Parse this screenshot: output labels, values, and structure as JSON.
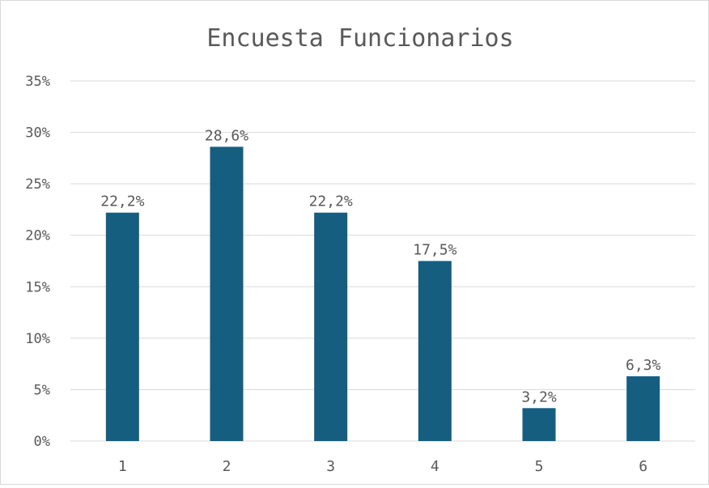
{
  "chart_data": {
    "type": "bar",
    "title": "Encuesta Funcionarios",
    "categories": [
      "1",
      "2",
      "3",
      "4",
      "5",
      "6"
    ],
    "series": [
      {
        "values": [
          22.2,
          28.6,
          22.2,
          17.5,
          3.2,
          6.3
        ],
        "data_labels": [
          "22,2%",
          "28,6%",
          "22,2%",
          "17,5%",
          "3,2%",
          "6,3%"
        ]
      }
    ],
    "y_ticks": [
      "0%",
      "5%",
      "10%",
      "15%",
      "20%",
      "25%",
      "30%",
      "35%"
    ],
    "ylim": [
      0,
      35
    ],
    "ytick_step": 5,
    "xlabel": "",
    "ylabel": "",
    "grid": true,
    "legend": "none",
    "colors": {
      "bar": "#165E80",
      "grid": "#d9d9d9",
      "text": "#595959",
      "frame": "#d9d9d9"
    }
  }
}
